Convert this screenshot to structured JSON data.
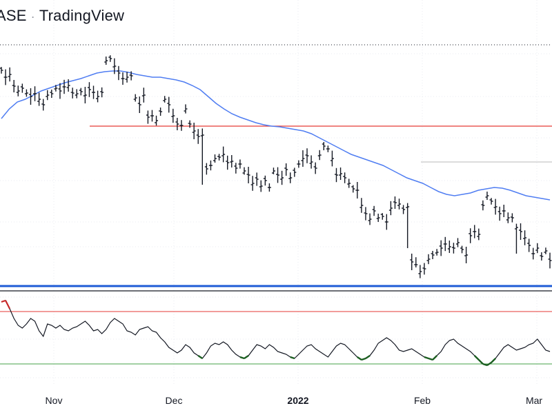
{
  "header": {
    "source_label": "ASE",
    "brand": "TradingView"
  },
  "colors": {
    "price_bar": "#131722",
    "moving_average": "#4f7df2",
    "resistance": "#e53935",
    "support": "#43a047",
    "separator": "#1e5bd6",
    "dotted_level": "#131722",
    "range_level": "#c8c8c8",
    "oscillator": "#131722",
    "oscillator_overbought": "#c62828",
    "oscillator_oversold": "#1b5e20"
  },
  "chart_data": [
    {
      "type": "line",
      "panel": "price",
      "description_style": "OHLC bars with moving average",
      "x_tick_labels": [
        "Nov",
        "Dec",
        "2022",
        "Feb",
        "Mar"
      ],
      "grid": true,
      "series": [
        {
          "kind": "ohlc",
          "values_close": [
            62,
            72,
            68,
            85,
            92,
            88,
            95,
            100,
            96,
            104,
            112,
            98,
            96,
            88,
            92,
            86,
            84,
            95,
            96,
            93,
            98,
            90,
            94,
            100,
            94,
            48,
            45,
            56,
            66,
            74,
            72,
            70,
            102,
            112,
            98,
            130,
            128,
            135,
            122,
            104,
            112,
            128,
            140,
            142,
            118,
            140,
            150,
            158,
            156,
            205,
            200,
            190,
            188,
            184,
            196,
            194,
            204,
            198,
            208,
            214,
            226,
            220,
            230,
            222,
            232,
            208,
            214,
            218,
            206,
            218,
            210,
            198,
            190,
            186,
            195,
            204,
            185,
            172,
            176,
            190,
            214,
            212,
            218,
            226,
            234,
            236,
            258,
            270,
            278,
            266,
            276,
            274,
            282,
            262,
            254,
            256,
            264,
            260,
            340,
            344,
            354,
            350,
            336,
            330,
            326,
            320,
            314,
            318,
            320,
            312,
            322,
            330,
            302,
            296,
            300,
            258,
            244,
            252,
            260,
            270,
            266,
            276,
            276,
            290,
            296,
            305,
            316,
            328,
            320,
            332,
            324,
            338
          ]
        },
        {
          "kind": "moving_average",
          "values": [
            172,
            158,
            148,
            144,
            138,
            132,
            128,
            124,
            120,
            117,
            114,
            110,
            106,
            104,
            103,
            103,
            105,
            108,
            110,
            112,
            112,
            114,
            116,
            119,
            124,
            130,
            140,
            150,
            158,
            165,
            170,
            174,
            178,
            181,
            183,
            184,
            186,
            188,
            190,
            194,
            200,
            206,
            212,
            218,
            224,
            228,
            232,
            236,
            240,
            246,
            252,
            258,
            262,
            266,
            272,
            278,
            282,
            284,
            282,
            280,
            276,
            274,
            272,
            273,
            276,
            280,
            284,
            286,
            288,
            290
          ]
        }
      ],
      "levels": [
        {
          "name": "",
          "kind": "dotted",
          "value_label": ""
        },
        {
          "name": "",
          "kind": "resistance"
        },
        {
          "name": "",
          "kind": "range_top"
        }
      ]
    },
    {
      "type": "line",
      "panel": "oscillator",
      "grid": true,
      "levels": [
        "overbought",
        "oversold"
      ],
      "series": [
        {
          "name": "",
          "values": [
            438,
            436,
            448,
            462,
            472,
            476,
            470,
            462,
            466,
            480,
            488,
            470,
            472,
            476,
            472,
            478,
            480,
            476,
            474,
            470,
            466,
            472,
            480,
            478,
            484,
            478,
            468,
            462,
            466,
            470,
            480,
            482,
            486,
            478,
            476,
            474,
            480,
            482,
            490,
            496,
            504,
            508,
            512,
            508,
            500,
            504,
            512,
            516,
            520,
            512,
            502,
            498,
            500,
            496,
            500,
            508,
            514,
            518,
            520,
            516,
            508,
            500,
            502,
            506,
            500,
            504,
            510,
            512,
            514,
            518,
            520,
            514,
            508,
            502,
            500,
            506,
            510,
            514,
            518,
            510,
            502,
            498,
            500,
            506,
            512,
            518,
            522,
            520,
            516,
            508,
            498,
            494,
            490,
            494,
            500,
            508,
            510,
            508,
            506,
            510,
            514,
            518,
            520,
            522,
            516,
            510,
            500,
            494,
            492,
            498,
            502,
            506,
            510,
            516,
            522,
            528,
            530,
            526,
            520,
            512,
            504,
            500,
            504,
            508,
            506,
            504,
            500,
            498,
            492,
            500,
            508,
            510
          ]
        }
      ]
    }
  ]
}
